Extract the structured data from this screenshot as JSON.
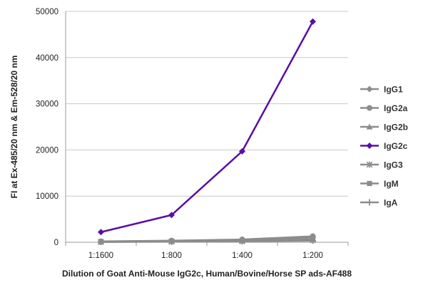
{
  "chart_data": {
    "type": "line",
    "title": "",
    "xlabel": "Dilution of Goat Anti-Mouse IgG2c, Human/Bovine/Horse SP ads-AF488",
    "ylabel": "FI at Ex-485/20 nm & Em-528/20 nm",
    "categories": [
      "1:1600",
      "1:800",
      "1:400",
      "1:200"
    ],
    "ylim": [
      0,
      50000
    ],
    "yticks": [
      0,
      10000,
      20000,
      30000,
      40000,
      50000
    ],
    "grid": "horizontal",
    "legend_position": "right",
    "series": [
      {
        "name": "IgG1",
        "color": "#8c8c8c",
        "marker": "diamond",
        "values": [
          150,
          250,
          450,
          1100
        ]
      },
      {
        "name": "IgG2a",
        "color": "#8c8c8c",
        "marker": "circle",
        "values": [
          200,
          350,
          600,
          1300
        ]
      },
      {
        "name": "IgG2b",
        "color": "#8c8c8c",
        "marker": "triangle",
        "values": [
          120,
          200,
          350,
          700
        ]
      },
      {
        "name": "IgG2c",
        "color": "#5a0fa6",
        "marker": "diamond",
        "values": [
          2200,
          5900,
          19700,
          47800
        ]
      },
      {
        "name": "IgG3",
        "color": "#8c8c8c",
        "marker": "star",
        "values": [
          80,
          150,
          250,
          450
        ]
      },
      {
        "name": "IgM",
        "color": "#8c8c8c",
        "marker": "square",
        "values": [
          100,
          180,
          300,
          550
        ]
      },
      {
        "name": "IgA",
        "color": "#8c8c8c",
        "marker": "plus",
        "values": [
          60,
          120,
          200,
          350
        ]
      }
    ]
  }
}
